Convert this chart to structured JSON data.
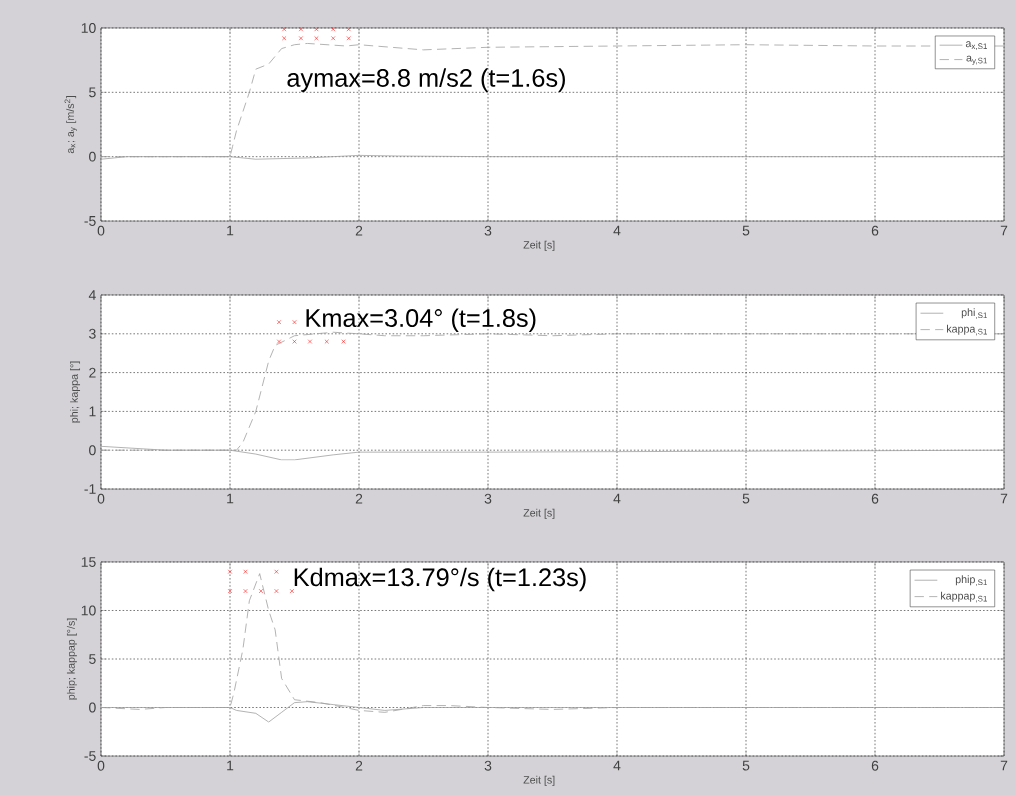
{
  "chart_data": [
    {
      "type": "line",
      "xlabel": "Zeit [s]",
      "ylabel": "a$_{x}$; a$_{y}$ [m/s$^{2}$]",
      "xlim": [
        0,
        7
      ],
      "ylim": [
        -5,
        10
      ],
      "xticks": [
        0,
        1,
        2,
        3,
        4,
        5,
        6,
        7
      ],
      "yticks": [
        -5,
        0,
        5,
        10
      ],
      "grid": true,
      "legend": "top right",
      "annotations": [
        "aymax=8.8 m/s2 (t=1.6s)"
      ],
      "series": [
        {
          "name": "a$_{x,S1}$",
          "color": "#a0a0a0",
          "line_style": "solid",
          "x": [
            0,
            0.2,
            1.0,
            1.2,
            1.6,
            2.0,
            2.3,
            3.0,
            7.0
          ],
          "values": [
            -0.2,
            0,
            0,
            -0.2,
            -0.1,
            0.1,
            0.05,
            0,
            0
          ]
        },
        {
          "name": "a$_{y,S1}$",
          "color": "#a0a0a0",
          "line_style": "dashed",
          "x": [
            0,
            1.0,
            1.02,
            1.05,
            1.15,
            1.2,
            1.3,
            1.4,
            1.5,
            1.6,
            1.9,
            2.0,
            2.5,
            3.0,
            4.0,
            5.0,
            6.0,
            7.0
          ],
          "values": [
            0,
            0,
            0.8,
            2,
            5,
            6.8,
            7.2,
            8.4,
            8.7,
            8.8,
            8.6,
            8.7,
            8.3,
            8.5,
            8.6,
            8.7,
            8.6,
            8.6
          ]
        },
        {
          "type": "scatter",
          "marker": "cross",
          "color": "#ff0000",
          "x": [
            1.42,
            1.55,
            1.67,
            1.8,
            1.92,
            1.42,
            1.55,
            1.67,
            1.8,
            1.92
          ],
          "values": [
            9.9,
            9.9,
            9.9,
            9.9,
            9.9,
            9.2,
            9.2,
            9.2,
            9.2,
            9.2
          ]
        }
      ]
    },
    {
      "type": "line",
      "xlabel": "Zeit [s]",
      "ylabel": "phi; kappa [°]",
      "xlim": [
        0,
        7
      ],
      "ylim": [
        -1,
        4
      ],
      "xticks": [
        0,
        1,
        2,
        3,
        4,
        5,
        6,
        7
      ],
      "yticks": [
        -1,
        0,
        1,
        2,
        3,
        4
      ],
      "grid": true,
      "legend": "top right",
      "annotations": [
        "Kmax=3.04° (t=1.8s)"
      ],
      "series": [
        {
          "name": "phi$_{,S1}$",
          "color": "#a0a0a0",
          "line_style": "solid",
          "x": [
            0,
            0.5,
            1.0,
            1.2,
            1.4,
            1.5,
            1.8,
            2.0,
            3.0,
            7.0
          ],
          "values": [
            0.1,
            0,
            0,
            -0.1,
            -0.25,
            -0.25,
            -0.12,
            -0.05,
            -0.05,
            0
          ]
        },
        {
          "name": "kappa$_{,S1}$",
          "color": "#a0a0a0",
          "line_style": "dashed",
          "x": [
            0,
            1.05,
            1.1,
            1.2,
            1.3,
            1.35,
            1.5,
            1.8,
            2.0,
            2.2,
            2.5,
            3.0,
            3.5,
            4.0,
            7.0
          ],
          "values": [
            0,
            0,
            0.2,
            1.0,
            2.3,
            2.7,
            2.95,
            3.04,
            3.0,
            2.95,
            2.95,
            3.0,
            2.95,
            3.0,
            3.0
          ]
        },
        {
          "type": "scatter",
          "marker": "cross",
          "color": "#ff0000",
          "x": [
            1.38,
            1.5,
            1.38,
            1.5,
            1.62,
            1.75,
            1.88
          ],
          "values": [
            3.3,
            3.3,
            2.8,
            2.8,
            2.8,
            2.8,
            2.8
          ]
        }
      ]
    },
    {
      "type": "line",
      "xlabel": "Zeit [s]",
      "ylabel": "phip; kappap [°/s]",
      "xlim": [
        0,
        7
      ],
      "ylim": [
        -5,
        15
      ],
      "xticks": [
        0,
        1,
        2,
        3,
        4,
        5,
        6,
        7
      ],
      "yticks": [
        -5,
        0,
        5,
        10,
        15
      ],
      "grid": true,
      "legend": "top right",
      "annotations": [
        "Kdmax=13.79°/s (t=1.23s)"
      ],
      "series": [
        {
          "name": "phip$_{,S1}$",
          "color": "#a0a0a0",
          "line_style": "solid",
          "x": [
            0,
            1.0,
            1.05,
            1.2,
            1.3,
            1.4,
            1.5,
            1.6,
            1.8,
            2.0,
            2.2,
            2.5,
            3.0,
            7.0
          ],
          "values": [
            0,
            0,
            -0.3,
            -0.6,
            -1.5,
            -0.5,
            0.5,
            0.6,
            0.3,
            0,
            -0.3,
            0,
            0,
            0
          ]
        },
        {
          "name": "kappap$_{,S1}$",
          "color": "#a0a0a0",
          "line_style": "dashed",
          "x": [
            0,
            0.3,
            0.5,
            1.0,
            1.03,
            1.1,
            1.15,
            1.23,
            1.3,
            1.35,
            1.4,
            1.5,
            1.7,
            2.0,
            2.2,
            2.5,
            2.7,
            3.0,
            3.5,
            4.0,
            7.0
          ],
          "values": [
            0,
            -0.2,
            0,
            0,
            1.5,
            6,
            11,
            13.8,
            10,
            8,
            3,
            0.8,
            0.5,
            -0.3,
            -0.5,
            0.2,
            0.2,
            0,
            -0.2,
            0,
            0
          ]
        },
        {
          "type": "scatter",
          "marker": "cross",
          "color": "#ff0000",
          "x": [
            1.0,
            1.12,
            1.36,
            1.0,
            1.12,
            1.24,
            1.36,
            1.48
          ],
          "values": [
            14,
            14,
            14,
            12,
            12,
            12,
            12,
            12
          ]
        }
      ]
    }
  ]
}
